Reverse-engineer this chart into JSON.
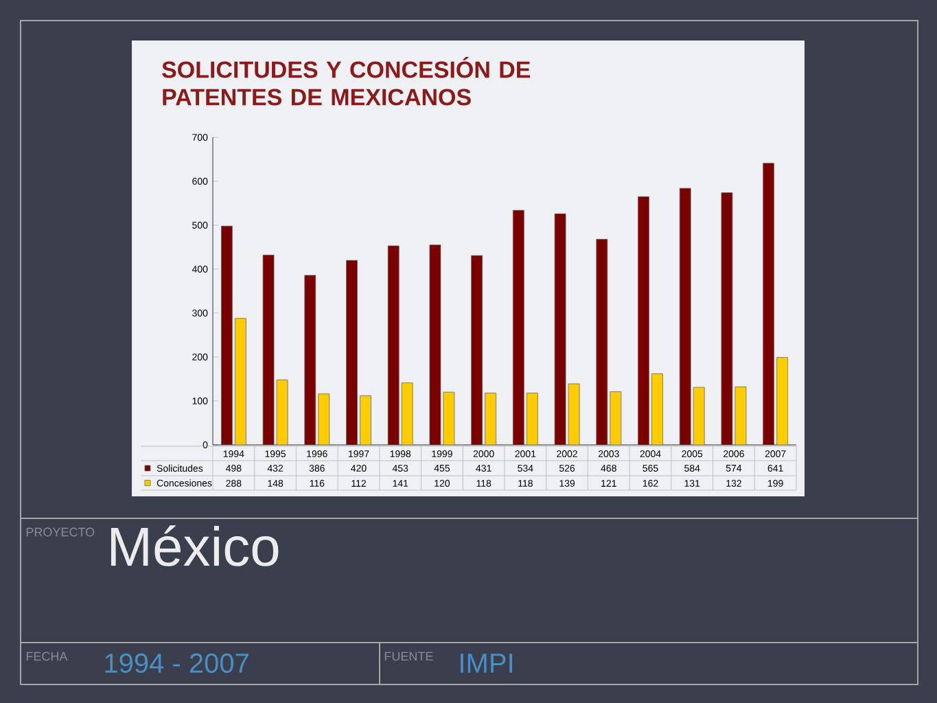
{
  "chart_data": {
    "type": "bar",
    "title": "SOLICITUDES Y CONCESIÓN DE PATENTES DE MEXICANOS",
    "categories": [
      "1994",
      "1995",
      "1996",
      "1997",
      "1998",
      "1999",
      "2000",
      "2001",
      "2002",
      "2003",
      "2004",
      "2005",
      "2006",
      "2007"
    ],
    "series": [
      {
        "name": "Solicitudes",
        "color": "#7a0000",
        "values": [
          498,
          432,
          386,
          420,
          453,
          455,
          431,
          534,
          526,
          468,
          565,
          584,
          574,
          641
        ]
      },
      {
        "name": "Concesiones",
        "color": "#ffcc00",
        "values": [
          288,
          148,
          116,
          112,
          141,
          120,
          118,
          118,
          139,
          121,
          162,
          131,
          132,
          199
        ]
      }
    ],
    "ylim": [
      0,
      700
    ],
    "yticks": [
      0,
      100,
      200,
      300,
      400,
      500,
      600,
      700
    ],
    "data_labels": true,
    "legend": "bottom",
    "annotations": [
      "PROYECTO",
      "México",
      "FECHA",
      "1994 - 2007",
      "FUENTE",
      "IMPI"
    ]
  }
}
